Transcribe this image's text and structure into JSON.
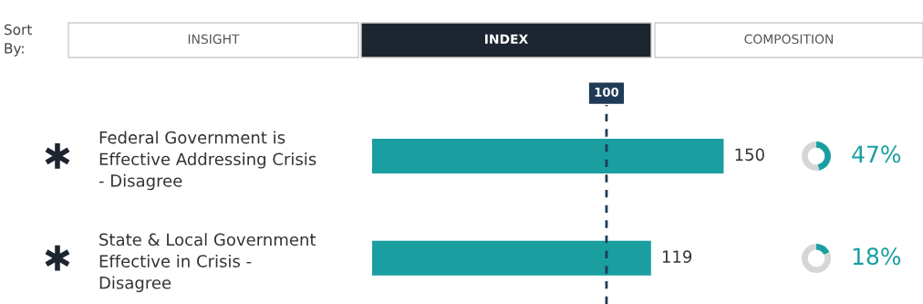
{
  "chart_data": [
    {
      "type": "bar",
      "orientation": "horizontal",
      "categories": [
        "Federal Government is\nEffective Addressing Crisis\n- Disagree",
        "State & Local Government\nEffective in Crisis -\nDisagree"
      ],
      "values": [
        150,
        119
      ],
      "color": "#1a9ea0",
      "data_labels": true,
      "tick_labels": "y",
      "grid": false,
      "ref_lines": [
        {
          "axis": "x",
          "value": 100,
          "label": "100",
          "color": "#1f3b57",
          "line_style": "dashed"
        }
      ],
      "annotations": [
        "Sort By:",
        "INSIGHT",
        "INDEX",
        "COMPOSITION"
      ]
    },
    {
      "type": "donut",
      "categories": [
        null,
        null
      ],
      "values": [
        47,
        53
      ],
      "colors": [
        "#1a9ea0",
        "#d6d6d6"
      ],
      "value_labels": [
        "47%",
        null
      ]
    },
    {
      "type": "donut",
      "categories": [
        null,
        null
      ],
      "values": [
        18,
        82
      ],
      "colors": [
        "#1a9ea0",
        "#d6d6d6"
      ],
      "value_labels": [
        "18%",
        null
      ]
    }
  ]
}
